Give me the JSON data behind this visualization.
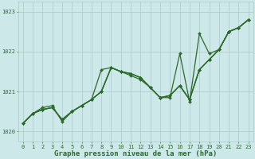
{
  "title": "Graphe pression niveau de la mer (hPa)",
  "background_color": "#cde8e8",
  "grid_color": "#adc8c8",
  "line_color": "#2d6a2d",
  "ylim": [
    1019.75,
    1023.25
  ],
  "xlim": [
    -0.5,
    23.5
  ],
  "yticks": [
    1020,
    1021,
    1022,
    1023
  ],
  "xticks": [
    0,
    1,
    2,
    3,
    4,
    5,
    6,
    7,
    8,
    9,
    10,
    11,
    12,
    13,
    14,
    15,
    16,
    17,
    18,
    19,
    20,
    21,
    22,
    23
  ],
  "series": [
    [
      1020.2,
      1020.45,
      1020.55,
      1020.6,
      1020.3,
      1020.5,
      1020.65,
      1020.8,
      1021.0,
      1021.6,
      1021.5,
      1021.45,
      1021.35,
      1021.1,
      1020.85,
      1020.9,
      1021.15,
      1020.8,
      1021.55,
      1021.8,
      1022.05,
      1022.5,
      1022.6,
      1022.8
    ],
    [
      1020.2,
      1020.45,
      1020.55,
      1020.6,
      1020.3,
      1020.5,
      1020.65,
      1020.8,
      1021.0,
      1021.6,
      1021.5,
      1021.45,
      1021.35,
      1021.1,
      1020.85,
      1020.9,
      1021.15,
      1020.8,
      1021.55,
      1021.8,
      1022.05,
      1022.5,
      1022.6,
      1022.8
    ],
    [
      1020.2,
      1020.45,
      1020.6,
      1020.65,
      1020.25,
      1020.5,
      1020.65,
      1020.8,
      1021.55,
      1021.6,
      1021.5,
      1021.4,
      1021.3,
      1021.1,
      1020.85,
      1020.85,
      1021.95,
      1020.75,
      1022.45,
      1021.95,
      1022.05,
      1022.5,
      1022.6,
      1022.8
    ],
    [
      1020.2,
      1020.45,
      1020.55,
      1020.6,
      1020.3,
      1020.5,
      1020.65,
      1020.8,
      1021.0,
      1021.6,
      1021.5,
      1021.45,
      1021.35,
      1021.1,
      1020.85,
      1020.9,
      1021.15,
      1020.8,
      1021.55,
      1021.8,
      1022.05,
      1022.5,
      1022.6,
      1022.8
    ]
  ],
  "line_width": 0.9,
  "marker": "D",
  "marker_size": 2.0,
  "font_family": "monospace",
  "title_fontsize": 6.5,
  "tick_fontsize": 5.0,
  "fig_width": 3.2,
  "fig_height": 2.0,
  "dpi": 100
}
